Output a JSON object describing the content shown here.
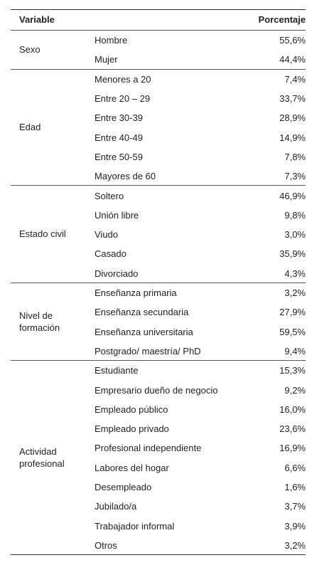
{
  "table": {
    "headers": {
      "variable": "Variable",
      "sub": "",
      "percent": "Porcentaje"
    },
    "groups": [
      {
        "label_lines": [
          "Sexo"
        ],
        "rows": [
          {
            "sub": "Hombre",
            "pct": "55,6%"
          },
          {
            "sub": "Mujer",
            "pct": "44,4%"
          }
        ]
      },
      {
        "label_lines": [
          "Edad"
        ],
        "rows": [
          {
            "sub": "Menores a 20",
            "pct": "7,4%"
          },
          {
            "sub": "Entre 20 – 29",
            "pct": "33,7%"
          },
          {
            "sub": "Entre 30-39",
            "pct": "28,9%"
          },
          {
            "sub": "Entre 40-49",
            "pct": "14,9%"
          },
          {
            "sub": "Entre 50-59",
            "pct": "7,8%"
          },
          {
            "sub": "Mayores de 60",
            "pct": "7,3%"
          }
        ]
      },
      {
        "label_lines": [
          "Estado civil"
        ],
        "rows": [
          {
            "sub": "Soltero",
            "pct": "46,9%"
          },
          {
            "sub": "Unión libre",
            "pct": "9,8%"
          },
          {
            "sub": "Viudo",
            "pct": "3,0%"
          },
          {
            "sub": "Casado",
            "pct": "35,9%"
          },
          {
            "sub": "Divorciado",
            "pct": "4,3%"
          }
        ]
      },
      {
        "label_lines": [
          "Nivel de",
          "formación"
        ],
        "rows": [
          {
            "sub": "Enseñanza primaria",
            "pct": "3,2%"
          },
          {
            "sub": "Enseñanza secundaria",
            "pct": "27,9%"
          },
          {
            "sub": "Enseñanza universitaria",
            "pct": "59,5%"
          },
          {
            "sub": "Postgrado/ maestría/ PhD",
            "pct": "9,4%"
          }
        ]
      },
      {
        "label_lines": [
          "Actividad",
          "profesional"
        ],
        "rows": [
          {
            "sub": "Estudiante",
            "pct": "15,3%"
          },
          {
            "sub": "Empresario dueño de negocio",
            "pct": "9,2%"
          },
          {
            "sub": "Empleado público",
            "pct": "16,0%"
          },
          {
            "sub": "Empleado privado",
            "pct": "23,6%"
          },
          {
            "sub": "Profesional independiente",
            "pct": "16,9%"
          },
          {
            "sub": "Labores del hogar",
            "pct": "6,6%"
          },
          {
            "sub": "Desempleado",
            "pct": "1,6%"
          },
          {
            "sub": "Jubilado/a",
            "pct": "3,7%"
          },
          {
            "sub": "Trabajador informal",
            "pct": "3,9%"
          },
          {
            "sub": "Otros",
            "pct": "3,2%"
          }
        ]
      }
    ]
  }
}
